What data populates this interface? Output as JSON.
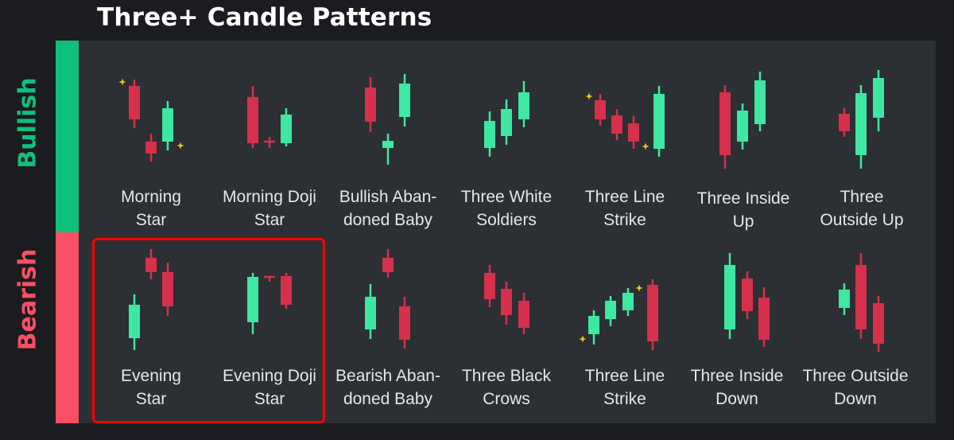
{
  "title": "Three+ Candle Patterns",
  "sections": {
    "bullish": "Bullish",
    "bearish": "Bearish"
  },
  "colors": {
    "bull": "#3de8a3",
    "bear": "#d6304c",
    "star": "#f5c518",
    "bull_bar": "#0ec07c",
    "bear_bar": "#fb4f65",
    "highlight": "#ff0000"
  },
  "bullish_patterns": [
    {
      "line1": "Morning",
      "line2": "Star"
    },
    {
      "line1": "Morning Doji",
      "line2": "Star"
    },
    {
      "line1": "Bullish Aban-",
      "line2": "doned Baby"
    },
    {
      "line1": "Three White",
      "line2": "Soldiers"
    },
    {
      "line1": "Three Line",
      "line2": "Strike"
    },
    {
      "line1": "Three Inside",
      "line2": "Up"
    },
    {
      "line1": "Three",
      "line2": "Outside Up"
    }
  ],
  "bearish_patterns": [
    {
      "line1": "Evening",
      "line2": "Star"
    },
    {
      "line1": "Evening Doji",
      "line2": "Star"
    },
    {
      "line1": "Bearish Aban-",
      "line2": "doned Baby"
    },
    {
      "line1": "Three Black",
      "line2": "Crows"
    },
    {
      "line1": "Three Line",
      "line2": "Strike"
    },
    {
      "line1": "Three Inside",
      "line2": "Down"
    },
    {
      "line1": "Three Outside",
      "line2": "Down"
    }
  ],
  "highlighted_patterns": [
    "Evening Star",
    "Evening Doji Star"
  ]
}
